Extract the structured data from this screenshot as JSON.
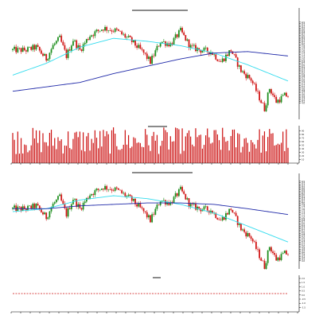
{
  "chart_data": [
    {
      "type": "candlestick",
      "title": "",
      "panel": "price",
      "x_range": [
        0,
        164
      ],
      "ylim": [
        3.0,
        9.6
      ],
      "grid": false,
      "anchors": [
        [
          0,
          7.6
        ],
        [
          8,
          7.6
        ],
        [
          14,
          7.8
        ],
        [
          20,
          7.0
        ],
        [
          24,
          7.9
        ],
        [
          28,
          8.4
        ],
        [
          32,
          7.2
        ],
        [
          36,
          8.3
        ],
        [
          40,
          7.6
        ],
        [
          46,
          8.6
        ],
        [
          54,
          9.1
        ],
        [
          62,
          8.9
        ],
        [
          70,
          8.3
        ],
        [
          78,
          7.4
        ],
        [
          82,
          6.8
        ],
        [
          88,
          8.2
        ],
        [
          94,
          8.0
        ],
        [
          100,
          8.9
        ],
        [
          106,
          7.8
        ],
        [
          112,
          7.6
        ],
        [
          118,
          7.5
        ],
        [
          124,
          6.8
        ],
        [
          130,
          7.6
        ],
        [
          136,
          6.2
        ],
        [
          142,
          5.6
        ],
        [
          146,
          4.6
        ],
        [
          150,
          3.6
        ],
        [
          153,
          5.0
        ],
        [
          157,
          4.1
        ],
        [
          162,
          4.5
        ]
      ],
      "overlays": [
        {
          "name": "",
          "color": "#33dcee",
          "values": [
            [
              0,
              5.9
            ],
            [
              20,
              6.7
            ],
            [
              40,
              7.8
            ],
            [
              60,
              8.4
            ],
            [
              80,
              8.2
            ],
            [
              100,
              7.9
            ],
            [
              120,
              7.4
            ],
            [
              140,
              6.6
            ],
            [
              164,
              5.5
            ]
          ]
        },
        {
          "name": "",
          "color": "#1e28a8",
          "values": [
            [
              0,
              4.8
            ],
            [
              20,
              5.1
            ],
            [
              40,
              5.4
            ],
            [
              60,
              6.0
            ],
            [
              80,
              6.5
            ],
            [
              100,
              7.0
            ],
            [
              120,
              7.4
            ],
            [
              140,
              7.5
            ],
            [
              164,
              7.2
            ]
          ]
        }
      ],
      "y_ticks": [
        "9.5",
        "9.4",
        "9.3",
        "9.2",
        "9.1",
        "9.0",
        "8.9",
        "8.8",
        "8.7",
        "8.6",
        "8.5",
        "8.4",
        "8.3",
        "8.2",
        "8.1",
        "8.0",
        "7.9",
        "7.8",
        "7.7",
        "7.6",
        "7.5",
        "7.4",
        "7.3",
        "7.2",
        "7.1",
        "7.0",
        "6.9",
        "6.8",
        "6.7",
        "6.6",
        "6.5",
        "6.4",
        "6.3",
        "6.2",
        "6.1",
        "6.0",
        "5.9",
        "5.8",
        "5.7",
        "5.6",
        "5.5",
        "5.4",
        "5.3",
        "5.2",
        "5.1",
        "5.0",
        "4.9",
        "4.8",
        "4.7",
        "4.6",
        "4.5",
        "4.4",
        "4.3",
        "4.2",
        "4.1",
        "4.0"
      ],
      "up_color": "#1f8f1f",
      "down_color": "#d11818"
    },
    {
      "type": "bar",
      "title": "",
      "panel": "volume",
      "bar_color": "#cc1111",
      "ylim": [
        0,
        100
      ],
      "y_ticks": [
        "90",
        "80",
        "70",
        "60",
        "50",
        "40",
        "30",
        "20",
        "10"
      ]
    },
    {
      "type": "candlestick",
      "title": "",
      "panel": "price",
      "x_range": [
        0,
        164
      ],
      "ylim": [
        3.0,
        9.6
      ],
      "grid": false,
      "anchors": [
        [
          0,
          7.6
        ],
        [
          8,
          7.6
        ],
        [
          14,
          7.8
        ],
        [
          20,
          7.0
        ],
        [
          24,
          7.9
        ],
        [
          28,
          8.4
        ],
        [
          32,
          7.2
        ],
        [
          36,
          8.3
        ],
        [
          40,
          7.6
        ],
        [
          46,
          8.6
        ],
        [
          54,
          9.1
        ],
        [
          62,
          8.9
        ],
        [
          70,
          8.3
        ],
        [
          78,
          7.4
        ],
        [
          82,
          6.8
        ],
        [
          88,
          8.2
        ],
        [
          94,
          8.0
        ],
        [
          100,
          8.9
        ],
        [
          106,
          7.8
        ],
        [
          112,
          7.6
        ],
        [
          118,
          7.5
        ],
        [
          124,
          6.8
        ],
        [
          130,
          7.6
        ],
        [
          136,
          6.2
        ],
        [
          142,
          5.6
        ],
        [
          146,
          4.6
        ],
        [
          150,
          3.6
        ],
        [
          153,
          5.0
        ],
        [
          157,
          4.1
        ],
        [
          162,
          4.5
        ]
      ],
      "overlays": [
        {
          "name": "",
          "color": "#33dcee",
          "values": [
            [
              0,
              7.4
            ],
            [
              20,
              7.6
            ],
            [
              40,
              8.2
            ],
            [
              60,
              8.5
            ],
            [
              80,
              8.3
            ],
            [
              100,
              7.9
            ],
            [
              120,
              7.3
            ],
            [
              140,
              6.4
            ],
            [
              164,
              5.3
            ]
          ]
        },
        {
          "name": "",
          "color": "#1e28a8",
          "values": [
            [
              0,
              7.6
            ],
            [
              20,
              7.6
            ],
            [
              40,
              7.8
            ],
            [
              60,
              7.9
            ],
            [
              80,
              8.0
            ],
            [
              100,
              8.0
            ],
            [
              120,
              7.9
            ],
            [
              140,
              7.6
            ],
            [
              164,
              7.2
            ]
          ]
        }
      ],
      "y_ticks": [
        "9.5",
        "9.4",
        "9.3",
        "9.2",
        "9.1",
        "9.0",
        "8.9",
        "8.8",
        "8.7",
        "8.6",
        "8.5",
        "8.4",
        "8.3",
        "8.2",
        "8.1",
        "8.0",
        "7.9",
        "7.8",
        "7.7",
        "7.6",
        "7.5",
        "7.4",
        "7.3",
        "7.2",
        "7.1",
        "7.0",
        "6.9",
        "6.8",
        "6.7",
        "6.6",
        "6.5",
        "6.4",
        "6.3",
        "6.2",
        "6.1",
        "6.0",
        "5.9",
        "5.8",
        "5.7",
        "5.6",
        "5.5",
        "5.4",
        "5.3",
        "5.2",
        "5.1",
        "5.0",
        "4.9",
        "4.8",
        "4.7",
        "4.6",
        "4.5",
        "4.4",
        "4.3",
        "4.2",
        "4.1",
        "4.0"
      ],
      "up_color": "#1f8f1f",
      "down_color": "#d11818"
    },
    {
      "type": "line",
      "title": "",
      "panel": "indicator",
      "series": [
        {
          "name": "",
          "color": "#cc1111",
          "style": "dashed",
          "values": [
            50,
            50
          ]
        }
      ],
      "ylim": [
        0,
        100
      ],
      "y_ticks": [
        "2.0",
        "1.5",
        "1.0",
        "0.5",
        "0.0",
        "-0.5",
        "-1.0",
        "-1.5"
      ]
    }
  ]
}
